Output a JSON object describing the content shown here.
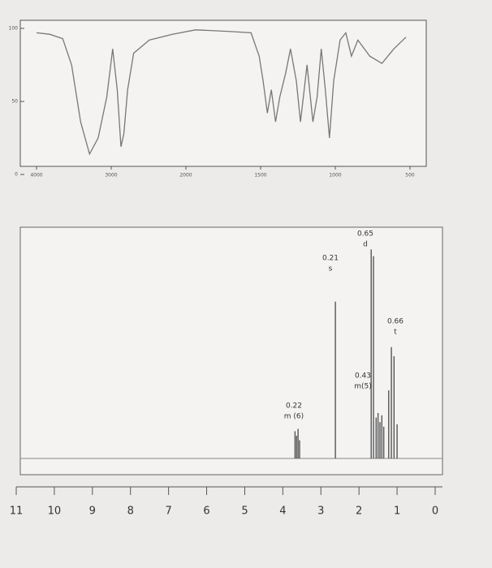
{
  "chart_data": [
    {
      "type": "line",
      "x": [
        4000,
        3825,
        3650,
        3530,
        3410,
        3290,
        3175,
        3060,
        2980,
        2920,
        2870,
        2830,
        2780,
        2700,
        2490,
        2180,
        1936,
        1723,
        1564,
        1510,
        1483,
        1455,
        1428,
        1400,
        1372,
        1333,
        1300,
        1261,
        1233,
        1189,
        1150,
        1122,
        1094,
        1067,
        1039,
        1011,
        968,
        930,
        892,
        849,
        769,
        688,
        608,
        527
      ],
      "series": [
        {
          "color": "#777777",
          "values": [
            97,
            96,
            93,
            75,
            36,
            14,
            25,
            53,
            86,
            58,
            19,
            28,
            58,
            83,
            92,
            96,
            99,
            98,
            97,
            81,
            64,
            42,
            58,
            36,
            53,
            69,
            86,
            64,
            36,
            75,
            36,
            53,
            86,
            58,
            25,
            64,
            92,
            97,
            81,
            92,
            81,
            76,
            86,
            94
          ]
        }
      ],
      "xlim": [
        4000,
        500
      ],
      "xticks": [
        4000,
        3000,
        2000,
        1500,
        1000,
        500
      ],
      "ylim": [
        0,
        100
      ],
      "yticks": [
        0,
        50,
        100
      ]
    },
    {
      "type": "stick",
      "x": [
        3.68,
        3.64,
        3.6,
        3.56,
        2.62,
        1.68,
        1.62,
        1.55,
        1.5,
        1.45,
        1.4,
        1.35,
        1.22,
        1.15,
        1.08,
        1.0
      ],
      "series": [
        {
          "color": "#555555",
          "values": [
            0.12,
            0.1,
            0.13,
            0.08,
            0.69,
            0.92,
            0.89,
            0.18,
            0.2,
            0.16,
            0.19,
            0.14,
            0.3,
            0.49,
            0.45,
            0.15
          ]
        }
      ],
      "xlim": [
        11,
        0
      ],
      "xticks": [
        11,
        10,
        9,
        8,
        7,
        6,
        5,
        4,
        3,
        2,
        1,
        0
      ],
      "ylim": [
        0,
        1
      ],
      "annotations": [
        [
          "0.22",
          "m (6)"
        ],
        [
          "0.21",
          "s"
        ],
        [
          "0.65",
          "d"
        ],
        [
          "0.43",
          "m(5)"
        ],
        [
          "0.66",
          "t"
        ]
      ]
    }
  ]
}
